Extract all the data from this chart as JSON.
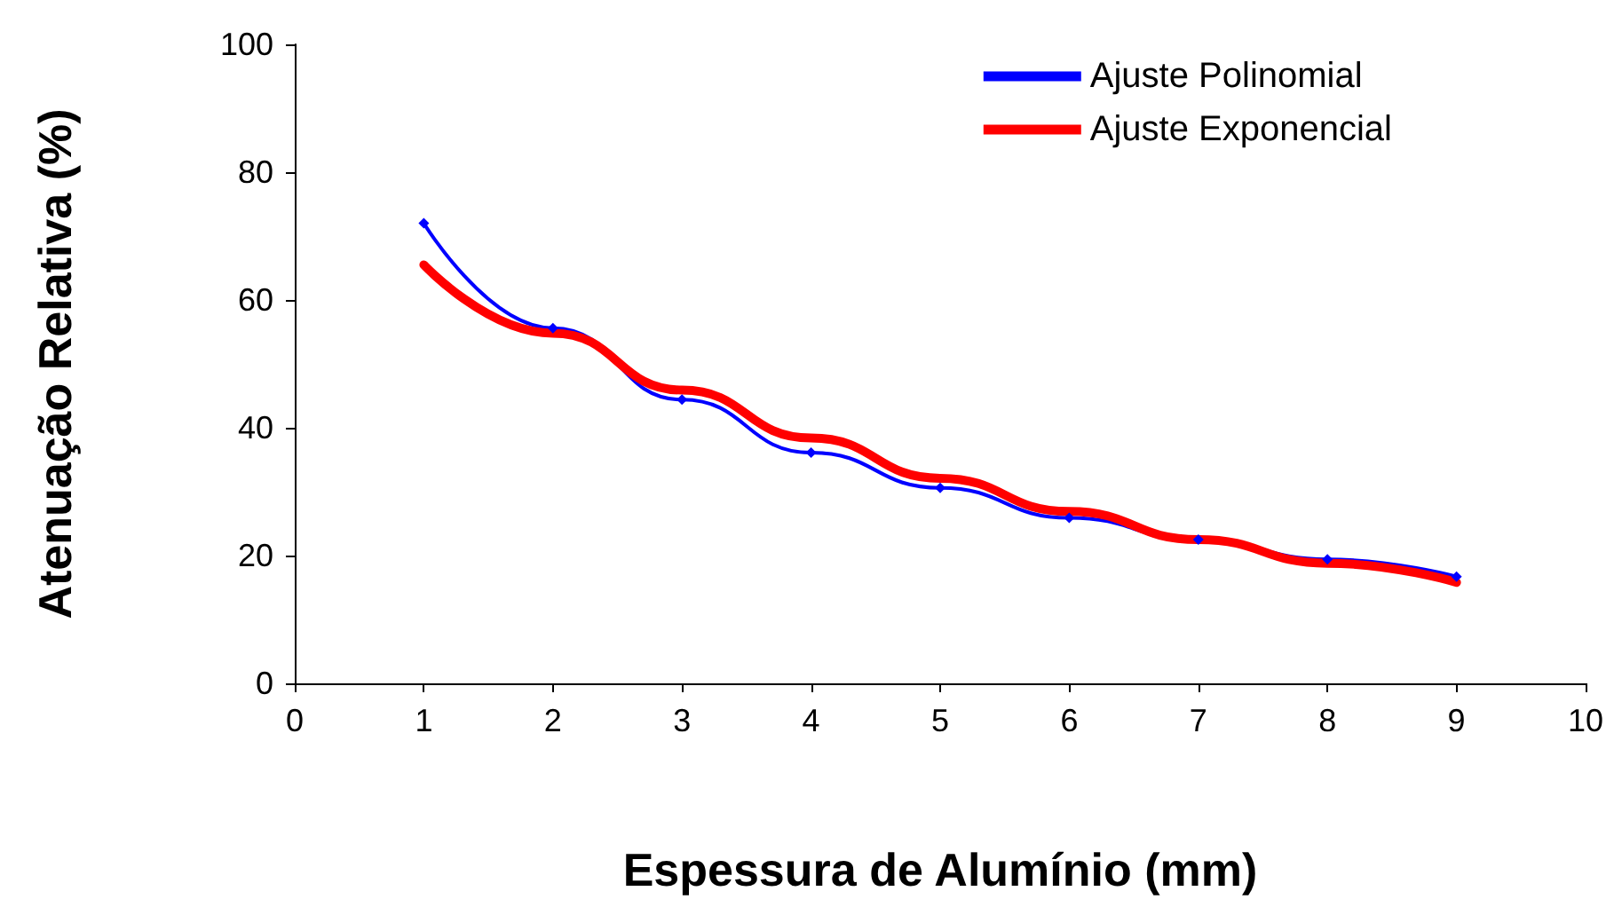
{
  "chart_data": {
    "type": "line",
    "xlabel": "Espessura de Alumínio (mm)",
    "ylabel": "Atenuação Relativa (%)",
    "x": [
      1,
      2,
      3,
      4,
      5,
      6,
      7,
      8,
      9
    ],
    "series": [
      {
        "name": "Ajuste Polinomial",
        "color": "#0000ff",
        "marker": "diamond",
        "values": [
          72,
          55.6,
          44.4,
          36.1,
          30.6,
          25.9,
          22.5,
          19.4,
          16.7
        ]
      },
      {
        "name": "Ajuste Exponencial",
        "color": "#ff0000",
        "marker": "none",
        "values": [
          65.5,
          54.8,
          45.9,
          38.4,
          32.1,
          26.9,
          22.5,
          18.8,
          15.8
        ]
      }
    ],
    "xlim": [
      0,
      10
    ],
    "xticks": [
      0,
      1,
      2,
      3,
      4,
      5,
      6,
      7,
      8,
      9,
      10
    ],
    "ylim": [
      0,
      100
    ],
    "yticks": [
      0,
      20,
      40,
      60,
      80,
      100
    ],
    "grid": false,
    "legend": "top right",
    "line_style": "solid"
  }
}
